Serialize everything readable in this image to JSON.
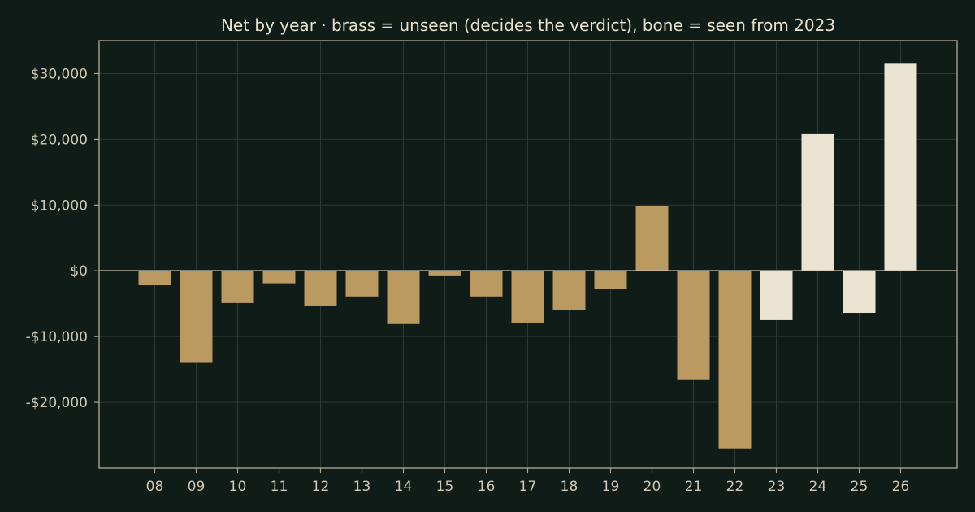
{
  "chart_data": {
    "type": "bar",
    "title": "Net by year  ·  brass = unseen (decides the verdict), bone = seen from 2023",
    "xlabel": "",
    "ylabel": "",
    "categories": [
      "08",
      "09",
      "10",
      "11",
      "12",
      "13",
      "14",
      "15",
      "16",
      "17",
      "18",
      "19",
      "20",
      "21",
      "22",
      "23",
      "24",
      "25",
      "26"
    ],
    "values": [
      -2200,
      -14000,
      -4900,
      -1900,
      -5300,
      -3900,
      -8100,
      -700,
      -3900,
      -7900,
      -6000,
      -2700,
      9900,
      -16500,
      -27000,
      -7500,
      20800,
      -6400,
      31500
    ],
    "groups": [
      "unseen",
      "unseen",
      "unseen",
      "unseen",
      "unseen",
      "unseen",
      "unseen",
      "unseen",
      "unseen",
      "unseen",
      "unseen",
      "unseen",
      "unseen",
      "unseen",
      "unseen",
      "seen",
      "seen",
      "seen",
      "seen"
    ],
    "group_colors": {
      "unseen": "#bb9a62",
      "seen": "#ebe3d1"
    },
    "ylim": [
      -30000,
      35000
    ],
    "yticks": [
      -20000,
      -10000,
      0,
      10000,
      20000,
      30000
    ],
    "ytick_labels": [
      "-$20,000",
      "-$10,000",
      "$0",
      "$10,000",
      "$20,000",
      "$30,000"
    ],
    "grid": true,
    "legend": "none"
  },
  "colors": {
    "background": "#0f1c17",
    "brass": "#bb9a62",
    "bone": "#ebe3d1"
  }
}
